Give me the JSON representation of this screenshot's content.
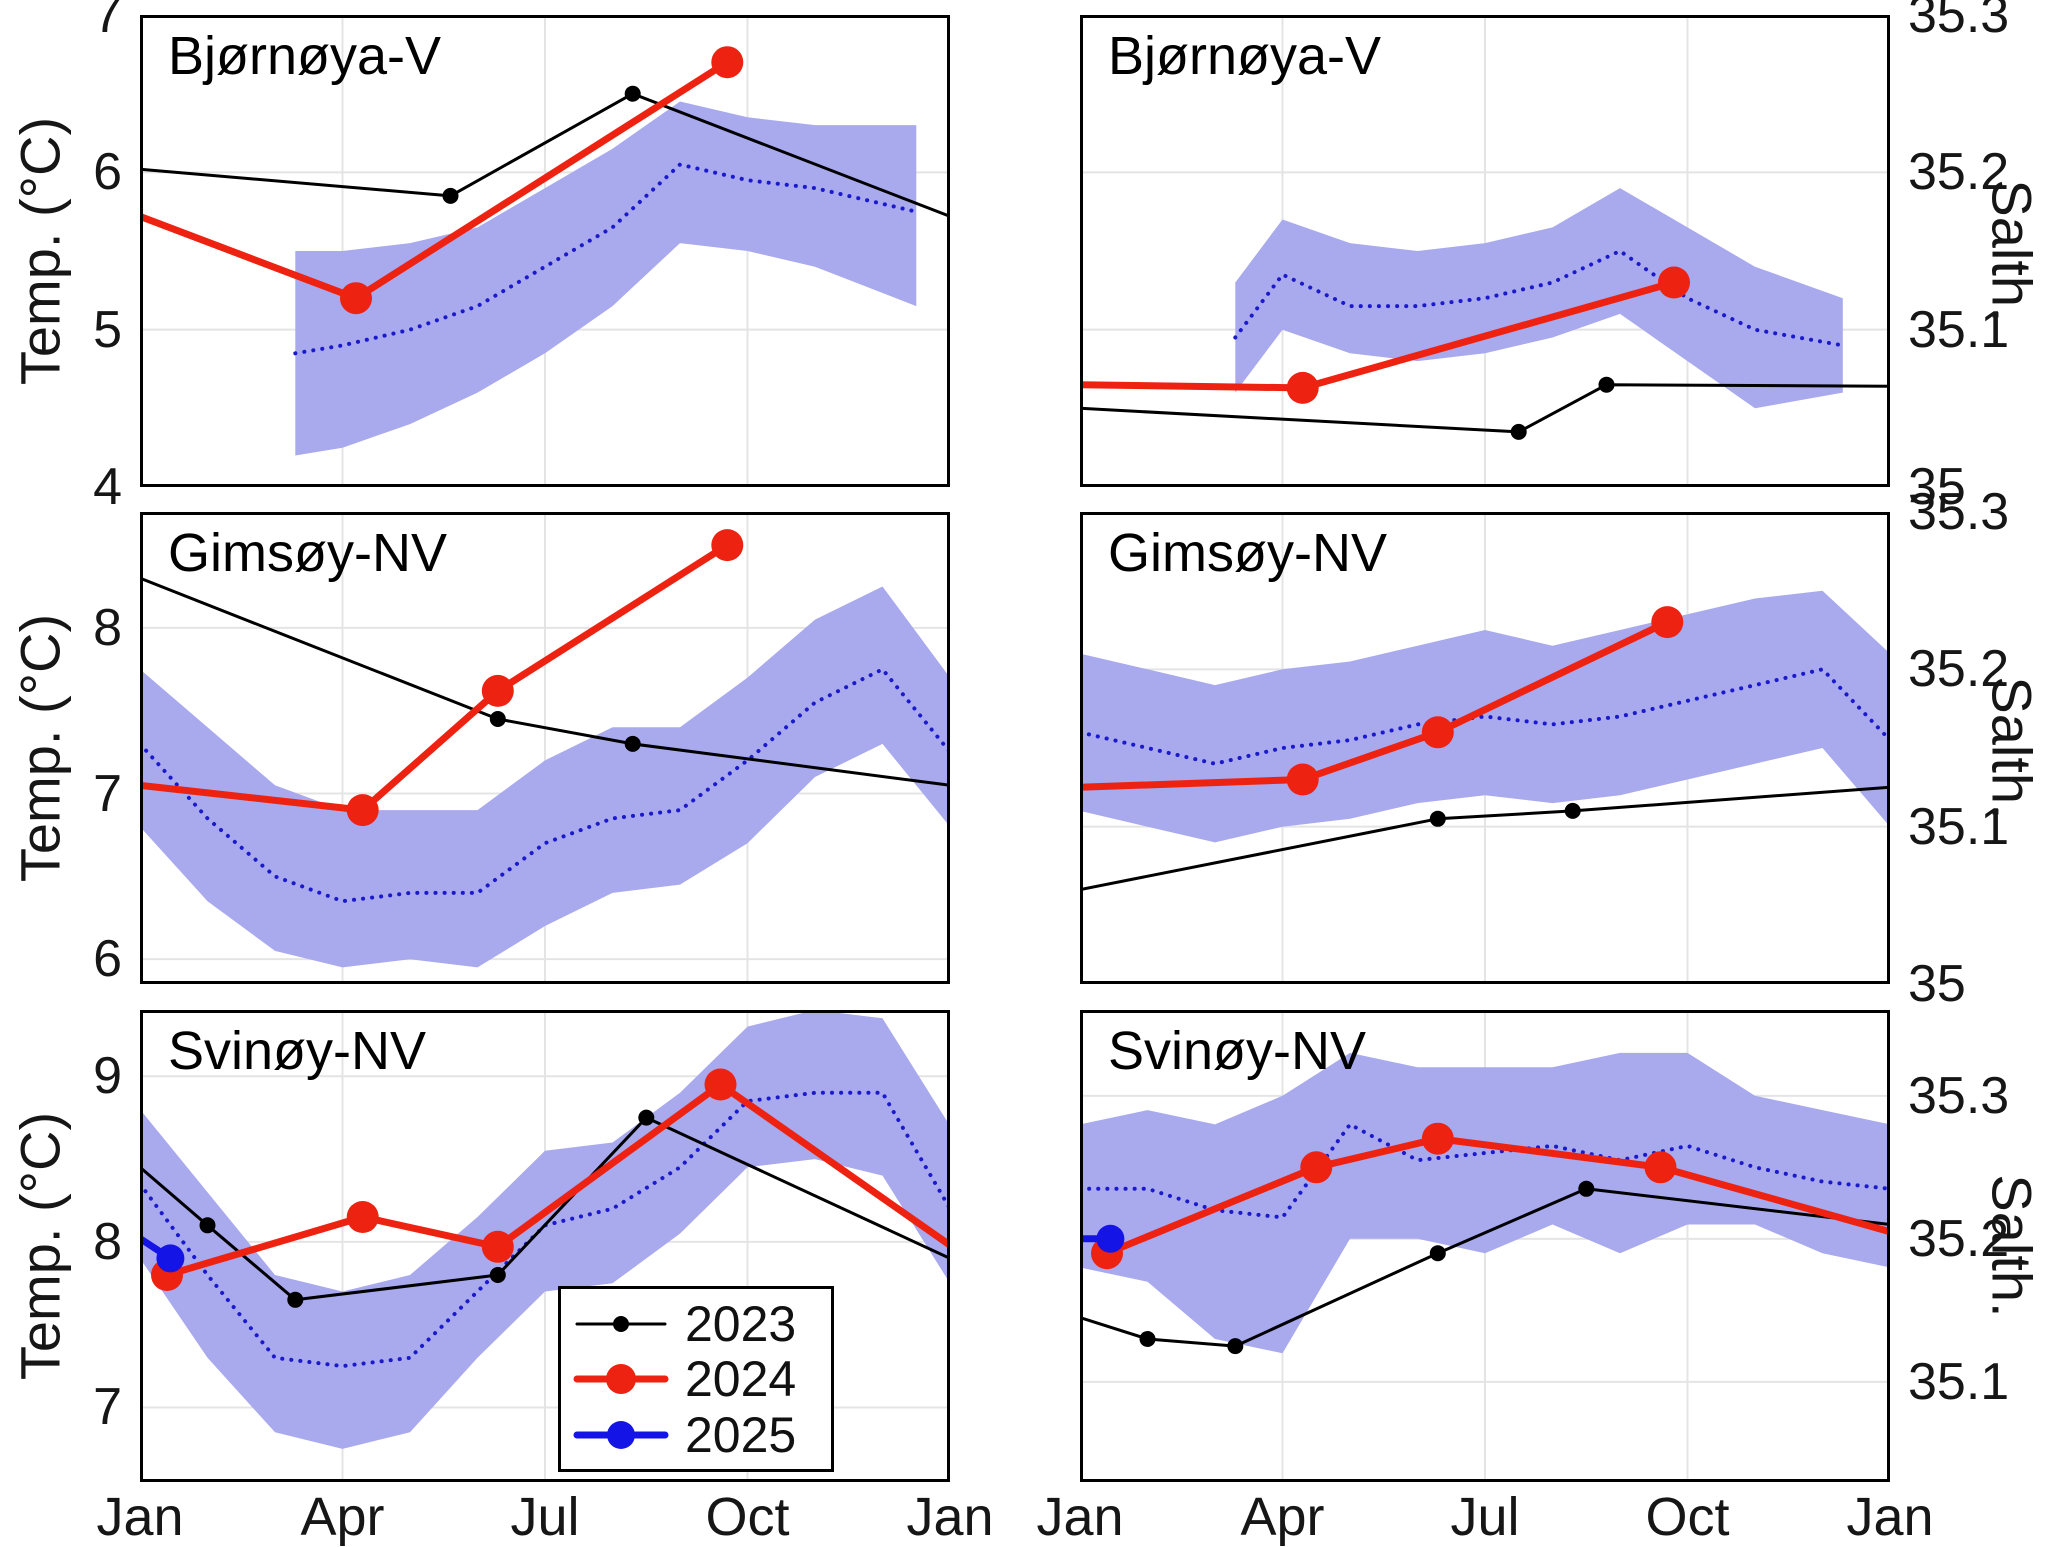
{
  "styles": {
    "band_color": "#a9a9ee",
    "climatology_color": "#1a1acc",
    "grid_color": "#e4e4e4",
    "axis_color": "#000000",
    "series": {
      "2023": {
        "color": "#000000",
        "width": 3,
        "marker_r": 8
      },
      "2024": {
        "color": "#ee2211",
        "width": 7,
        "marker_r": 16
      },
      "2025": {
        "color": "#1414e6",
        "width": 7,
        "marker_r": 14
      }
    }
  },
  "xaxis": {
    "ticks": [
      0,
      3,
      6,
      9,
      12
    ],
    "labels": [
      "Jan",
      "Apr",
      "Jul",
      "Oct",
      "Jan"
    ]
  },
  "legend": {
    "entries": [
      {
        "label": "2023",
        "series": "2023"
      },
      {
        "label": "2024",
        "series": "2024"
      },
      {
        "label": "2025",
        "series": "2025"
      }
    ]
  },
  "chart_data": [
    {
      "type": "line",
      "title": "Bjørnøya-V",
      "ylabel": "Temp. (°C)",
      "axis_side": "left",
      "ylim": [
        4,
        7
      ],
      "yticks": [
        4,
        5,
        6,
        7
      ],
      "ytick_labels": [
        "4",
        "5",
        "6",
        "7"
      ],
      "climatology_band": {
        "x": [
          2.3,
          3,
          4,
          5,
          6,
          7,
          8,
          9,
          10,
          11.5
        ],
        "lower": [
          4.2,
          4.25,
          4.4,
          4.6,
          4.85,
          5.15,
          5.55,
          5.5,
          5.4,
          5.15
        ],
        "upper": [
          5.5,
          5.5,
          5.55,
          5.65,
          5.9,
          6.15,
          6.45,
          6.35,
          6.3,
          6.3
        ]
      },
      "climatology_mean": {
        "x": [
          2.3,
          3,
          4,
          5,
          6,
          7,
          8,
          9,
          10,
          11.5
        ],
        "y": [
          4.85,
          4.9,
          5.0,
          5.15,
          5.4,
          5.65,
          6.05,
          5.95,
          5.9,
          5.75
        ]
      },
      "series": [
        {
          "name": "2023",
          "x": [
            0,
            4.6,
            7.3,
            12
          ],
          "y": [
            6.02,
            5.85,
            6.5,
            5.72
          ],
          "marker_idx": [
            1,
            2
          ]
        },
        {
          "name": "2024",
          "x": [
            0,
            3.2,
            8.7
          ],
          "y": [
            5.72,
            5.2,
            6.7
          ],
          "marker_idx": [
            1,
            2
          ]
        }
      ]
    },
    {
      "type": "line",
      "title": "Bjørnøya-V",
      "ylabel": "Salth.",
      "axis_side": "right",
      "ylim": [
        35,
        35.3
      ],
      "yticks": [
        35,
        35.1,
        35.2,
        35.3
      ],
      "ytick_labels": [
        "35",
        "35.1",
        "35.2",
        "35.3"
      ],
      "climatology_band": {
        "x": [
          2.3,
          3,
          4,
          5,
          6,
          7,
          8,
          9,
          10,
          11.3
        ],
        "lower": [
          35.06,
          35.1,
          35.085,
          35.08,
          35.085,
          35.095,
          35.11,
          35.08,
          35.05,
          35.06
        ],
        "upper": [
          35.13,
          35.17,
          35.155,
          35.15,
          35.155,
          35.165,
          35.19,
          35.165,
          35.14,
          35.12
        ]
      },
      "climatology_mean": {
        "x": [
          2.3,
          3,
          4,
          5,
          6,
          7,
          8,
          9,
          10,
          11.3
        ],
        "y": [
          35.095,
          35.135,
          35.115,
          35.115,
          35.12,
          35.13,
          35.15,
          35.12,
          35.1,
          35.09
        ]
      },
      "series": [
        {
          "name": "2023",
          "x": [
            0,
            6.5,
            7.8,
            12
          ],
          "y": [
            35.05,
            35.035,
            35.065,
            35.064
          ],
          "marker_idx": [
            1,
            2
          ]
        },
        {
          "name": "2024",
          "x": [
            0,
            3.3,
            8.8
          ],
          "y": [
            35.065,
            35.063,
            35.13
          ],
          "marker_idx": [
            1,
            2
          ]
        }
      ]
    },
    {
      "type": "line",
      "title": "Gimsøy-NV",
      "ylabel": "Temp. (°C)",
      "axis_side": "left",
      "ylim": [
        5.85,
        8.7
      ],
      "yticks": [
        6,
        7,
        8
      ],
      "ytick_labels": [
        "6",
        "7",
        "8"
      ],
      "climatology_band": {
        "x": [
          0,
          1,
          2,
          3,
          4,
          5,
          6,
          7,
          8,
          9,
          10,
          11,
          12
        ],
        "lower": [
          6.8,
          6.35,
          6.05,
          5.95,
          6.0,
          5.95,
          6.2,
          6.4,
          6.45,
          6.7,
          7.1,
          7.3,
          6.8
        ],
        "upper": [
          7.75,
          7.4,
          7.05,
          6.9,
          6.9,
          6.9,
          7.2,
          7.4,
          7.4,
          7.7,
          8.05,
          8.25,
          7.7
        ]
      },
      "climatology_mean": {
        "x": [
          0,
          1,
          2,
          3,
          4,
          5,
          6,
          7,
          8,
          9,
          10,
          11,
          12
        ],
        "y": [
          7.3,
          6.85,
          6.5,
          6.35,
          6.4,
          6.4,
          6.7,
          6.85,
          6.9,
          7.2,
          7.55,
          7.75,
          7.25
        ]
      },
      "series": [
        {
          "name": "2023",
          "x": [
            0,
            5.3,
            7.3,
            12
          ],
          "y": [
            8.3,
            7.45,
            7.3,
            7.05
          ],
          "marker_idx": [
            1,
            2
          ]
        },
        {
          "name": "2024",
          "x": [
            0,
            3.3,
            5.3,
            8.7
          ],
          "y": [
            7.05,
            6.9,
            7.62,
            8.5
          ],
          "marker_idx": [
            1,
            2,
            3
          ]
        }
      ]
    },
    {
      "type": "line",
      "title": "Gimsøy-NV",
      "ylabel": "Salth.",
      "axis_side": "right",
      "ylim": [
        35,
        35.3
      ],
      "yticks": [
        35,
        35.1,
        35.2,
        35.3
      ],
      "ytick_labels": [
        "35",
        "35.1",
        "35.2",
        "35.3"
      ],
      "climatology_band": {
        "x": [
          0,
          1,
          2,
          3,
          4,
          5,
          6,
          7,
          8,
          9,
          10,
          11,
          12
        ],
        "lower": [
          35.11,
          35.1,
          35.09,
          35.1,
          35.105,
          35.115,
          35.12,
          35.115,
          35.12,
          35.13,
          35.14,
          35.15,
          35.1
        ],
        "upper": [
          35.21,
          35.2,
          35.19,
          35.2,
          35.205,
          35.215,
          35.225,
          35.215,
          35.225,
          35.235,
          35.245,
          35.25,
          35.21
        ]
      },
      "climatology_mean": {
        "x": [
          0,
          1,
          2,
          3,
          4,
          5,
          6,
          7,
          8,
          9,
          10,
          11,
          12
        ],
        "y": [
          35.16,
          35.15,
          35.14,
          35.15,
          35.155,
          35.165,
          35.17,
          35.165,
          35.17,
          35.18,
          35.19,
          35.2,
          35.155
        ]
      },
      "series": [
        {
          "name": "2023",
          "x": [
            0,
            5.3,
            7.3,
            12
          ],
          "y": [
            35.06,
            35.105,
            35.11,
            35.125
          ],
          "marker_idx": [
            1,
            2
          ]
        },
        {
          "name": "2024",
          "x": [
            0,
            3.3,
            5.3,
            8.7
          ],
          "y": [
            35.125,
            35.13,
            35.16,
            35.23
          ],
          "marker_idx": [
            1,
            2,
            3
          ]
        }
      ]
    },
    {
      "type": "line",
      "title": "Svinøy-NV",
      "ylabel": "Temp. (°C)",
      "axis_side": "left",
      "ylim": [
        6.55,
        9.4
      ],
      "yticks": [
        7,
        8,
        9
      ],
      "ytick_labels": [
        "7",
        "8",
        "9"
      ],
      "climatology_band": {
        "x": [
          0,
          1,
          2,
          3,
          4,
          5,
          6,
          7,
          8,
          9,
          10,
          11,
          12
        ],
        "lower": [
          7.9,
          7.3,
          6.85,
          6.75,
          6.85,
          7.3,
          7.7,
          7.75,
          8.05,
          8.45,
          8.5,
          8.4,
          7.75
        ],
        "upper": [
          8.8,
          8.3,
          7.8,
          7.7,
          7.8,
          8.15,
          8.55,
          8.6,
          8.9,
          9.3,
          9.4,
          9.35,
          8.7
        ]
      },
      "climatology_mean": {
        "x": [
          0,
          1,
          2,
          3,
          4,
          5,
          6,
          7,
          8,
          9,
          10,
          11,
          12
        ],
        "y": [
          8.35,
          7.8,
          7.3,
          7.25,
          7.3,
          7.7,
          8.1,
          8.2,
          8.45,
          8.85,
          8.9,
          8.9,
          8.2
        ]
      },
      "series": [
        {
          "name": "2023",
          "x": [
            0,
            1,
            2.3,
            5.3,
            7.5,
            12
          ],
          "y": [
            8.45,
            8.1,
            7.65,
            7.8,
            8.75,
            7.9
          ],
          "marker_idx": [
            1,
            2,
            3,
            4
          ]
        },
        {
          "name": "2024",
          "x": [
            0.4,
            3.3,
            5.3,
            8.6,
            12
          ],
          "y": [
            7.8,
            8.15,
            7.97,
            8.95,
            7.98
          ],
          "marker_idx": [
            0,
            1,
            2,
            3
          ]
        },
        {
          "name": "2025",
          "x": [
            0,
            0.45
          ],
          "y": [
            8.02,
            7.9
          ],
          "marker_idx": [
            1
          ]
        }
      ]
    },
    {
      "type": "line",
      "title": "Svinøy-NV",
      "ylabel": "Salth.",
      "axis_side": "right",
      "ylim": [
        35.03,
        35.36
      ],
      "yticks": [
        35.1,
        35.2,
        35.3
      ],
      "ytick_labels": [
        "35.1",
        "35.2",
        "35.3"
      ],
      "climatology_band": {
        "x": [
          0,
          1,
          2,
          3,
          4,
          5,
          6,
          7,
          8,
          9,
          10,
          11,
          12
        ],
        "lower": [
          35.18,
          35.17,
          35.13,
          35.12,
          35.2,
          35.2,
          35.19,
          35.21,
          35.19,
          35.21,
          35.21,
          35.19,
          35.18
        ],
        "upper": [
          35.28,
          35.29,
          35.28,
          35.3,
          35.33,
          35.32,
          35.32,
          35.32,
          35.33,
          35.33,
          35.3,
          35.29,
          35.28
        ]
      },
      "climatology_mean": {
        "x": [
          0,
          1,
          2,
          3,
          4,
          5,
          6,
          7,
          8,
          9,
          10,
          11,
          12
        ],
        "y": [
          35.235,
          35.235,
          35.22,
          35.215,
          35.28,
          35.255,
          35.26,
          35.265,
          35.255,
          35.265,
          35.25,
          35.24,
          35.235
        ]
      },
      "series": [
        {
          "name": "2023",
          "x": [
            0,
            1,
            2.3,
            5.3,
            7.5,
            12
          ],
          "y": [
            35.145,
            35.13,
            35.125,
            35.19,
            35.235,
            35.21
          ],
          "marker_idx": [
            1,
            2,
            3,
            4
          ]
        },
        {
          "name": "2024",
          "x": [
            0.4,
            3.5,
            5.3,
            8.6,
            12
          ],
          "y": [
            35.19,
            35.25,
            35.27,
            35.25,
            35.205
          ],
          "marker_idx": [
            0,
            1,
            2,
            3
          ]
        },
        {
          "name": "2025",
          "x": [
            0,
            0.45
          ],
          "y": [
            35.2,
            35.2
          ],
          "marker_idx": [
            1
          ]
        }
      ]
    }
  ]
}
